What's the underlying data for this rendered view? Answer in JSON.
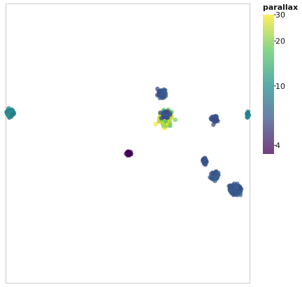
{
  "chart_data": {
    "type": "scatter",
    "title": "",
    "xlabel": "",
    "ylabel": "",
    "grid": false,
    "axes_visible": false,
    "xlim": [
      0,
      100
    ],
    "ylim": [
      0,
      100
    ],
    "point_opacity": 0.75,
    "color": {
      "label": "parallax",
      "scale": "log",
      "range": [
        3.5,
        30
      ],
      "ticks": [
        4,
        10,
        20,
        30
      ],
      "tick_labels": [
        "4",
        "10",
        "20",
        "30"
      ],
      "colormap": [
        "#440154",
        "#3b528b",
        "#21918c",
        "#5ec962",
        "#fde725"
      ],
      "legend_position": "right"
    },
    "clusters": [
      {
        "cx": 1.5,
        "cy": 61.0,
        "sx": 1.5,
        "sy": 1.2,
        "n": 70,
        "parallax": 9.0,
        "jitter": 0.09
      },
      {
        "cx": 64.0,
        "cy": 68.0,
        "sx": 1.6,
        "sy": 1.3,
        "n": 60,
        "parallax": 6.2,
        "jitter": 0.04
      },
      {
        "cx": 65.5,
        "cy": 59.0,
        "sx": 2.2,
        "sy": 2.4,
        "n": 150,
        "parallax": 22.0,
        "jitter": 0.2
      },
      {
        "cx": 65.5,
        "cy": 60.5,
        "sx": 1.4,
        "sy": 1.0,
        "n": 55,
        "parallax": 6.0,
        "jitter": 0.04
      },
      {
        "cx": 85.5,
        "cy": 59.0,
        "sx": 1.1,
        "sy": 1.0,
        "n": 40,
        "parallax": 6.0,
        "jitter": 0.04
      },
      {
        "cx": 50.3,
        "cy": 46.3,
        "sx": 0.9,
        "sy": 0.8,
        "n": 25,
        "parallax": 3.6,
        "jitter": 0.02
      },
      {
        "cx": 81.7,
        "cy": 43.5,
        "sx": 0.9,
        "sy": 1.1,
        "n": 30,
        "parallax": 6.0,
        "jitter": 0.04
      },
      {
        "cx": 85.8,
        "cy": 38.7,
        "sx": 1.5,
        "sy": 1.3,
        "n": 55,
        "parallax": 6.5,
        "jitter": 0.05
      },
      {
        "cx": 94.0,
        "cy": 33.5,
        "sx": 2.0,
        "sy": 1.6,
        "n": 140,
        "parallax": 6.3,
        "jitter": 0.05
      },
      {
        "cx": 99.3,
        "cy": 60.5,
        "sx": 0.4,
        "sy": 1.0,
        "n": 15,
        "parallax": 9.2,
        "jitter": 0.04
      }
    ]
  }
}
